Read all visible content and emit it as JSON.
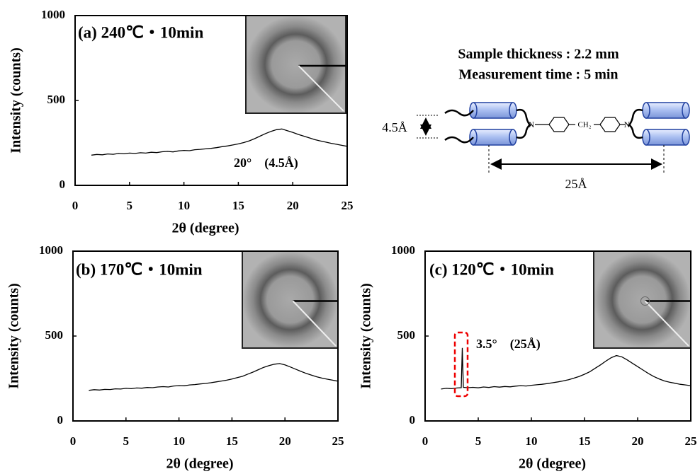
{
  "chart_data": [
    {
      "type": "line",
      "title": "(a) 240℃・10min",
      "x_label": "2θ (degree)",
      "y_label": "Intensity (counts)",
      "annotation": "20°　(4.5Å)",
      "xlim": [
        0,
        25
      ],
      "ylim": [
        0,
        1000
      ],
      "xticks": [
        0,
        5,
        10,
        15,
        20,
        25
      ],
      "yticks": [
        0,
        500,
        1000
      ],
      "x": [
        1.5,
        2,
        2.5,
        3,
        3.5,
        4,
        4.5,
        5,
        5.5,
        6,
        6.5,
        7,
        7.5,
        8,
        8.5,
        9,
        9.5,
        10,
        10.5,
        11,
        11.5,
        12,
        12.5,
        13,
        13.5,
        14,
        14.5,
        15,
        15.5,
        16,
        16.5,
        17,
        17.5,
        18,
        18.5,
        19,
        19.5,
        20,
        20.5,
        21,
        21.5,
        22,
        22.5,
        23,
        23.5,
        24,
        24.5,
        25
      ],
      "series": [
        {
          "color": "#000000",
          "values": [
            178,
            182,
            180,
            185,
            183,
            188,
            186,
            190,
            188,
            192,
            190,
            195,
            193,
            198,
            200,
            197,
            203,
            206,
            204,
            210,
            212,
            215,
            218,
            222,
            228,
            232,
            238,
            244,
            252,
            262,
            275,
            290,
            305,
            318,
            328,
            332,
            322,
            312,
            300,
            290,
            280,
            270,
            262,
            255,
            248,
            242,
            236,
            230
          ]
        }
      ]
    },
    {
      "type": "line",
      "title": "(b) 170℃・10min",
      "x_label": "2θ (degree)",
      "y_label": "Intensity (counts)",
      "xlim": [
        0,
        25
      ],
      "ylim": [
        0,
        1000
      ],
      "xticks": [
        0,
        5,
        10,
        15,
        20,
        25
      ],
      "yticks": [
        0,
        500,
        1000
      ],
      "x": [
        1.5,
        2,
        2.5,
        3,
        3.5,
        4,
        4.5,
        5,
        5.5,
        6,
        6.5,
        7,
        7.5,
        8,
        8.5,
        9,
        9.5,
        10,
        10.5,
        11,
        11.5,
        12,
        12.5,
        13,
        13.5,
        14,
        14.5,
        15,
        15.5,
        16,
        16.5,
        17,
        17.5,
        18,
        18.5,
        19,
        19.5,
        20,
        20.5,
        21,
        21.5,
        22,
        22.5,
        23,
        23.5,
        24,
        24.5,
        25
      ],
      "series": [
        {
          "color": "#000000",
          "values": [
            180,
            184,
            182,
            186,
            185,
            189,
            188,
            192,
            190,
            194,
            193,
            197,
            196,
            200,
            202,
            200,
            206,
            208,
            207,
            212,
            214,
            218,
            221,
            225,
            230,
            235,
            240,
            247,
            255,
            263,
            276,
            288,
            302,
            316,
            326,
            334,
            338,
            330,
            318,
            305,
            292,
            280,
            270,
            260,
            252,
            246,
            240,
            234
          ]
        }
      ]
    },
    {
      "type": "line",
      "title": "(c) 120℃・10min",
      "x_label": "2θ (degree)",
      "y_label": "Intensity (counts)",
      "annotation": "3.5°　(25Å)",
      "xlim": [
        0,
        25
      ],
      "ylim": [
        0,
        1000
      ],
      "xticks": [
        0,
        5,
        10,
        15,
        20,
        25
      ],
      "yticks": [
        0,
        500,
        1000
      ],
      "x": [
        1.5,
        2,
        2.5,
        3,
        3.4,
        3.5,
        3.6,
        4,
        4.5,
        5,
        5.5,
        6,
        6.5,
        7,
        7.5,
        8,
        8.5,
        9,
        9.5,
        10,
        10.5,
        11,
        11.5,
        12,
        12.5,
        13,
        13.5,
        14,
        14.5,
        15,
        15.5,
        16,
        16.5,
        17,
        17.5,
        18,
        18.5,
        19,
        19.5,
        20,
        20.5,
        21,
        21.5,
        22,
        22.5,
        23,
        23.5,
        24,
        24.5,
        25
      ],
      "series": [
        {
          "color": "#000000",
          "values": [
            188,
            192,
            190,
            194,
            196,
            430,
            198,
            196,
            198,
            195,
            200,
            197,
            202,
            199,
            203,
            201,
            205,
            208,
            206,
            210,
            213,
            216,
            220,
            225,
            230,
            236,
            243,
            252,
            262,
            275,
            290,
            310,
            330,
            352,
            372,
            385,
            378,
            360,
            340,
            320,
            300,
            280,
            262,
            248,
            236,
            228,
            222,
            216,
            212,
            208
          ]
        }
      ]
    }
  ],
  "conditions": {
    "thickness": "Sample thickness : 2.2 mm",
    "time": "Measurement time : 5 min"
  },
  "diagram": {
    "spacing": "4.5Å",
    "length": "25Å",
    "linker": "CH₂",
    "atom": "N"
  }
}
